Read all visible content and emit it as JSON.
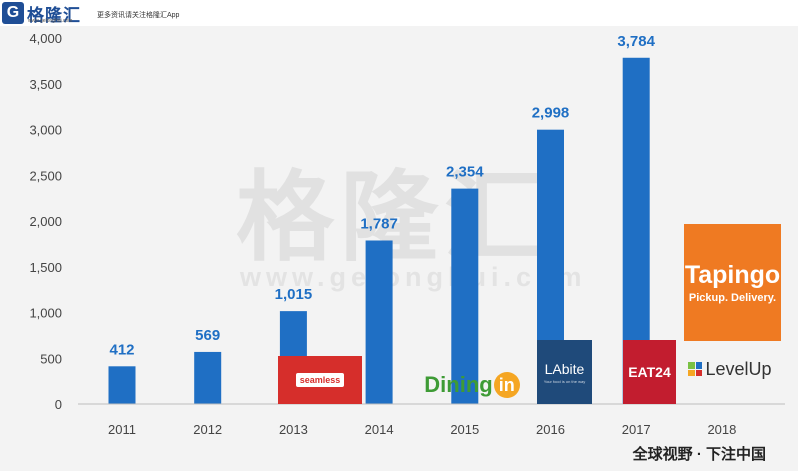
{
  "header": {
    "logo_mark": "G",
    "logo_name": "格隆汇",
    "logo_url": "www.gelonghui.com",
    "tagline": "更多资讯请关注格隆汇App"
  },
  "watermark": {
    "text": "格隆汇",
    "url": "www.gelonghui.com"
  },
  "footer": {
    "text": "全球视野 · 下注中国"
  },
  "colors": {
    "bar": "#1f6fc4",
    "label": "#1f6fc4",
    "axis": "#444444"
  },
  "chart_data": {
    "type": "bar",
    "categories": [
      "2011",
      "2012",
      "2013",
      "2014",
      "2015",
      "2016",
      "2017",
      "2018"
    ],
    "values": [
      412,
      569,
      1015,
      1787,
      2354,
      2998,
      3784,
      null
    ],
    "data_labels": [
      "412",
      "569",
      "1,015",
      "1,787",
      "2,354",
      "2,998",
      "3,784",
      ""
    ],
    "y_ticks": [
      0,
      500,
      1000,
      1500,
      2000,
      2500,
      3000,
      3500,
      4000
    ],
    "y_tick_labels": [
      "0",
      "500",
      "1,000",
      "1,500",
      "2,000",
      "2,500",
      "3,000",
      "3,500",
      "4,000"
    ],
    "ylim": [
      0,
      4000
    ],
    "grid": false,
    "legend": "none",
    "title": "",
    "xlabel": "",
    "ylabel": ""
  },
  "acquisitions": [
    {
      "year": "2013",
      "brand": "seamless",
      "icon": "seamless-logo"
    },
    {
      "year": "2015",
      "brand_text": "Dining",
      "brand_suffix": "in",
      "icon": "diningin-logo"
    },
    {
      "year": "2016",
      "brand": "LAbite",
      "sub": "Your food is on the way",
      "icon": "labite-logo"
    },
    {
      "year": "2017",
      "brand": "EAT24",
      "icon": "eat24-logo"
    },
    {
      "year": "2018",
      "brand": "Tapingo",
      "sub": "Pickup. Delivery.",
      "icon": "tapingo-logo"
    },
    {
      "year": "2018",
      "brand": "LevelUp",
      "icon": "levelup-logo"
    }
  ]
}
